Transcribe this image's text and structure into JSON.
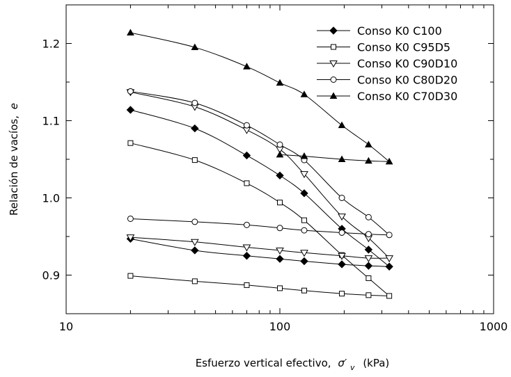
{
  "chart_data": {
    "type": "line",
    "xscale": "log",
    "xlim": [
      10,
      1000
    ],
    "ylim": [
      0.85,
      1.25
    ],
    "x_ticks": [
      "10",
      "100",
      "1000"
    ],
    "y_ticks": [
      "0.9",
      "1.0",
      "1.1",
      "1.2"
    ],
    "x_tick_values": [
      10,
      100,
      1000
    ],
    "y_tick_values": [
      0.9,
      1.0,
      1.1,
      1.2
    ],
    "xlabel": "Esfuerzo vertical efectivo,",
    "xlabel_symbol": "σ′",
    "xlabel_sub": "v",
    "xlabel_unit": "(kPa)",
    "ylabel": "Relación de vacíos,",
    "ylabel_symbol": "e",
    "legend_position": "top-right",
    "grid": false,
    "series": [
      {
        "name": "Conso K0 C100",
        "marker": "diamond-filled",
        "x": [
          20,
          40,
          70,
          100,
          130,
          195,
          260,
          325,
          260,
          195,
          130,
          100,
          70,
          40,
          20
        ],
        "y": [
          1.114,
          1.09,
          1.055,
          1.029,
          1.006,
          0.96,
          0.933,
          0.911,
          0.912,
          0.914,
          0.918,
          0.921,
          0.925,
          0.932,
          0.947
        ]
      },
      {
        "name": "Conso K0 C95D5",
        "marker": "square-open",
        "x": [
          20,
          40,
          70,
          100,
          130,
          195,
          260,
          325,
          260,
          195,
          130,
          100,
          70,
          40,
          20
        ],
        "y": [
          1.071,
          1.049,
          1.019,
          0.994,
          0.971,
          0.926,
          0.896,
          0.873,
          0.874,
          0.876,
          0.88,
          0.883,
          0.887,
          0.892,
          0.899
        ]
      },
      {
        "name": "Conso K0 C90D10",
        "marker": "triangle-down-open",
        "x": [
          20,
          40,
          70,
          100,
          130,
          195,
          260,
          325,
          260,
          195,
          130,
          100,
          70,
          40,
          20
        ],
        "y": [
          1.137,
          1.118,
          1.088,
          1.063,
          1.031,
          0.976,
          0.948,
          0.922,
          0.922,
          0.925,
          0.929,
          0.932,
          0.936,
          0.943,
          0.949
        ]
      },
      {
        "name": "Conso K0 C80D20",
        "marker": "circle-open",
        "x": [
          20,
          40,
          70,
          100,
          130,
          195,
          260,
          325,
          260,
          195,
          130,
          100,
          70,
          40,
          20
        ],
        "y": [
          1.138,
          1.123,
          1.094,
          1.069,
          1.049,
          1.0,
          0.975,
          0.952,
          0.953,
          0.955,
          0.958,
          0.961,
          0.965,
          0.969,
          0.973
        ]
      },
      {
        "name": "Conso K0 C70D30",
        "marker": "triangle-up-filled",
        "x": [
          20,
          40,
          70,
          100,
          130,
          195,
          260,
          325,
          260,
          195,
          130,
          100
        ],
        "y": [
          1.214,
          1.195,
          1.17,
          1.149,
          1.134,
          1.094,
          1.069,
          1.047,
          1.048,
          1.05,
          1.054,
          1.056
        ]
      }
    ]
  }
}
